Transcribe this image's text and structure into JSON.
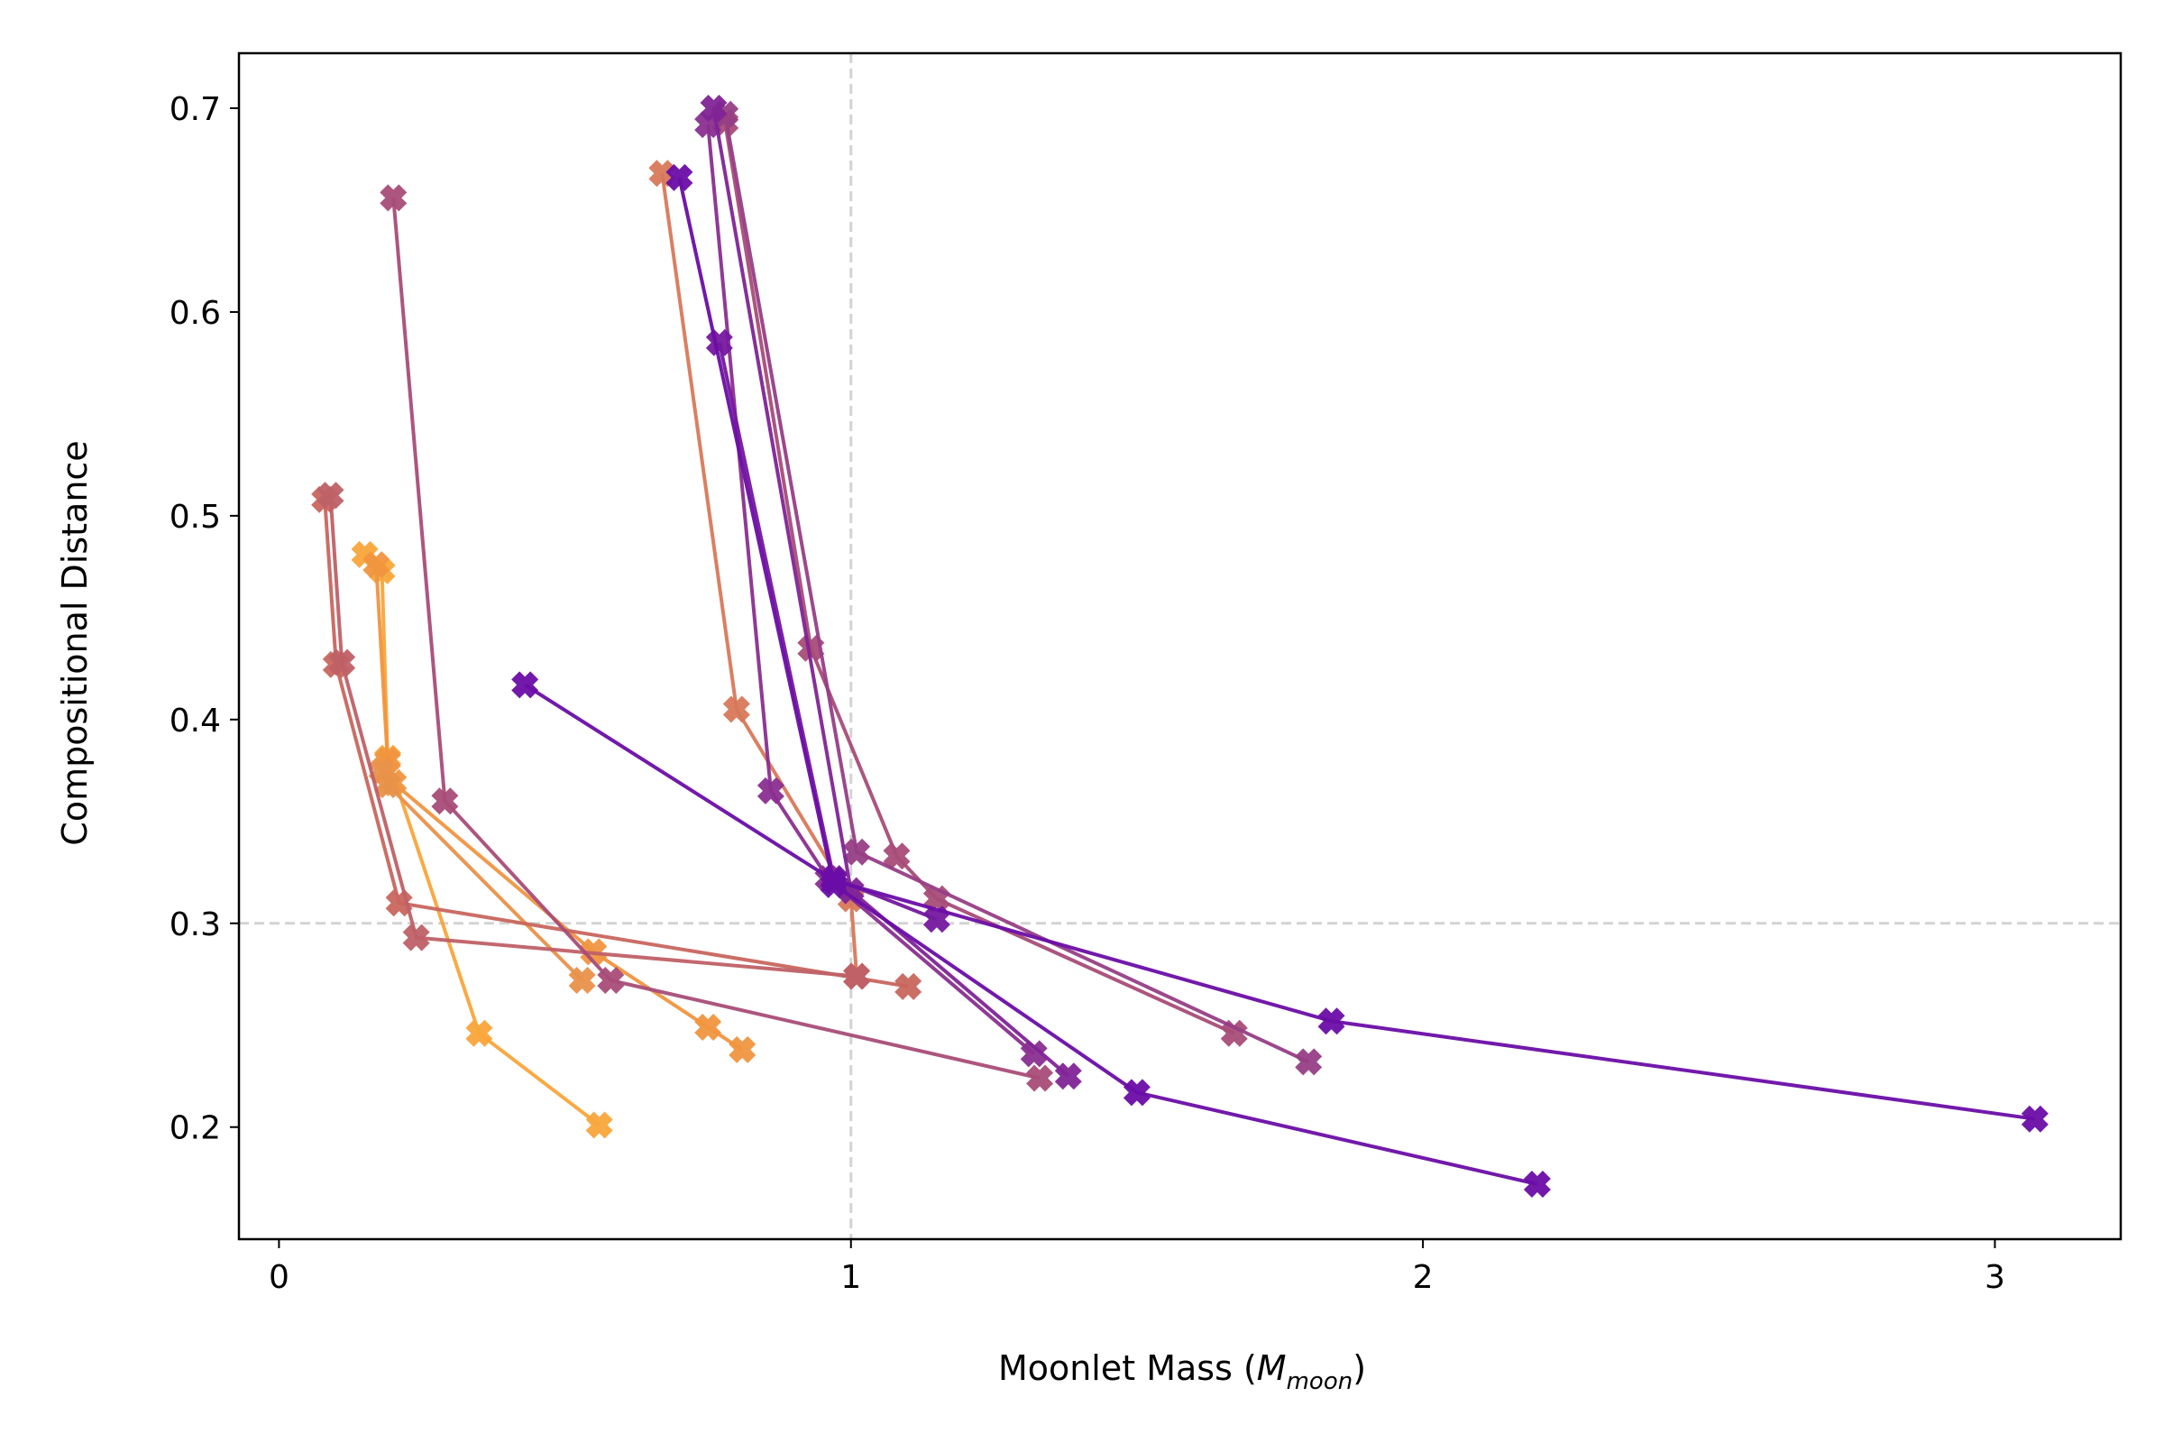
{
  "chart_data": {
    "type": "line",
    "title": "",
    "xlabel": "Moonlet Mass (",
    "xlabel_symbol": "M",
    "xlabel_subscript": "moon",
    "xlabel_close": ")",
    "ylabel": "Compositional Distance",
    "xlim": [
      -0.07,
      3.22
    ],
    "ylim": [
      0.145,
      0.727
    ],
    "xticks": [
      0,
      1,
      2,
      3
    ],
    "xtick_labels": [
      "0",
      "1",
      "2",
      "3"
    ],
    "yticks": [
      0.2,
      0.3,
      0.4,
      0.5,
      0.6,
      0.7
    ],
    "ytick_labels": [
      "0.2",
      "0.3",
      "0.4",
      "0.5",
      "0.6",
      "0.7"
    ],
    "reference_lines": {
      "x": 1.0,
      "y": 0.3,
      "color": "#d3d3d3",
      "style": "dashed"
    },
    "marker": "X",
    "series": [
      {
        "name": "s1",
        "color": "#F9A53A",
        "x": [
          0.15,
          0.18,
          0.19,
          0.35,
          0.56
        ],
        "y": [
          0.481,
          0.473,
          0.381,
          0.246,
          0.201
        ]
      },
      {
        "name": "s2",
        "color": "#F0953F",
        "x": [
          0.17,
          0.19,
          0.2,
          0.55,
          0.75,
          0.81
        ],
        "y": [
          0.476,
          0.38,
          0.369,
          0.286,
          0.249,
          0.238
        ]
      },
      {
        "name": "s3",
        "color": "#E8914A",
        "x": [
          0.18,
          0.19,
          0.53
        ],
        "y": [
          0.375,
          0.368,
          0.272
        ]
      },
      {
        "name": "s4",
        "color": "#D8785A",
        "x": [
          0.67,
          0.8,
          1.0,
          1.01
        ],
        "y": [
          0.668,
          0.405,
          0.312,
          0.274
        ]
      },
      {
        "name": "s5",
        "color": "#C8665E",
        "x": [
          0.08,
          0.1,
          0.21,
          1.1
        ],
        "y": [
          0.508,
          0.427,
          0.31,
          0.269
        ]
      },
      {
        "name": "s6",
        "color": "#BF6067",
        "x": [
          0.09,
          0.11,
          0.24,
          1.01
        ],
        "y": [
          0.51,
          0.428,
          0.293,
          0.274
        ]
      },
      {
        "name": "s7",
        "color": "#A84C78",
        "x": [
          0.2,
          0.29,
          0.58,
          1.33
        ],
        "y": [
          0.656,
          0.36,
          0.272,
          0.224
        ]
      },
      {
        "name": "s8",
        "color": "#A84C78",
        "x": [
          0.78,
          0.93,
          1.08,
          1.15,
          1.67
        ],
        "y": [
          0.693,
          0.435,
          0.333,
          0.312,
          0.246
        ]
      },
      {
        "name": "s9",
        "color": "#963E86",
        "x": [
          0.78,
          1.01,
          1.8
        ],
        "y": [
          0.697,
          0.335,
          0.232
        ]
      },
      {
        "name": "s10",
        "color": "#8A2E90",
        "x": [
          0.75,
          0.86,
          0.96,
          1.32
        ],
        "y": [
          0.692,
          0.365,
          0.322,
          0.236
        ]
      },
      {
        "name": "s11",
        "color": "#7F2496",
        "x": [
          0.76,
          1.0,
          1.38
        ],
        "y": [
          0.7,
          0.316,
          0.225
        ]
      },
      {
        "name": "s12",
        "color": "#75189E",
        "x": [
          0.77,
          0.97,
          1.15
        ],
        "y": [
          0.585,
          0.322,
          0.302
        ]
      },
      {
        "name": "s13",
        "color": "#6A0DA7",
        "x": [
          0.7,
          0.97,
          1.5,
          2.2
        ],
        "y": [
          0.666,
          0.319,
          0.217,
          0.172
        ]
      },
      {
        "name": "s14",
        "color": "#6A0DA7",
        "x": [
          0.43,
          0.97,
          1.84,
          3.07
        ],
        "y": [
          0.417,
          0.321,
          0.252,
          0.204
        ]
      }
    ]
  }
}
